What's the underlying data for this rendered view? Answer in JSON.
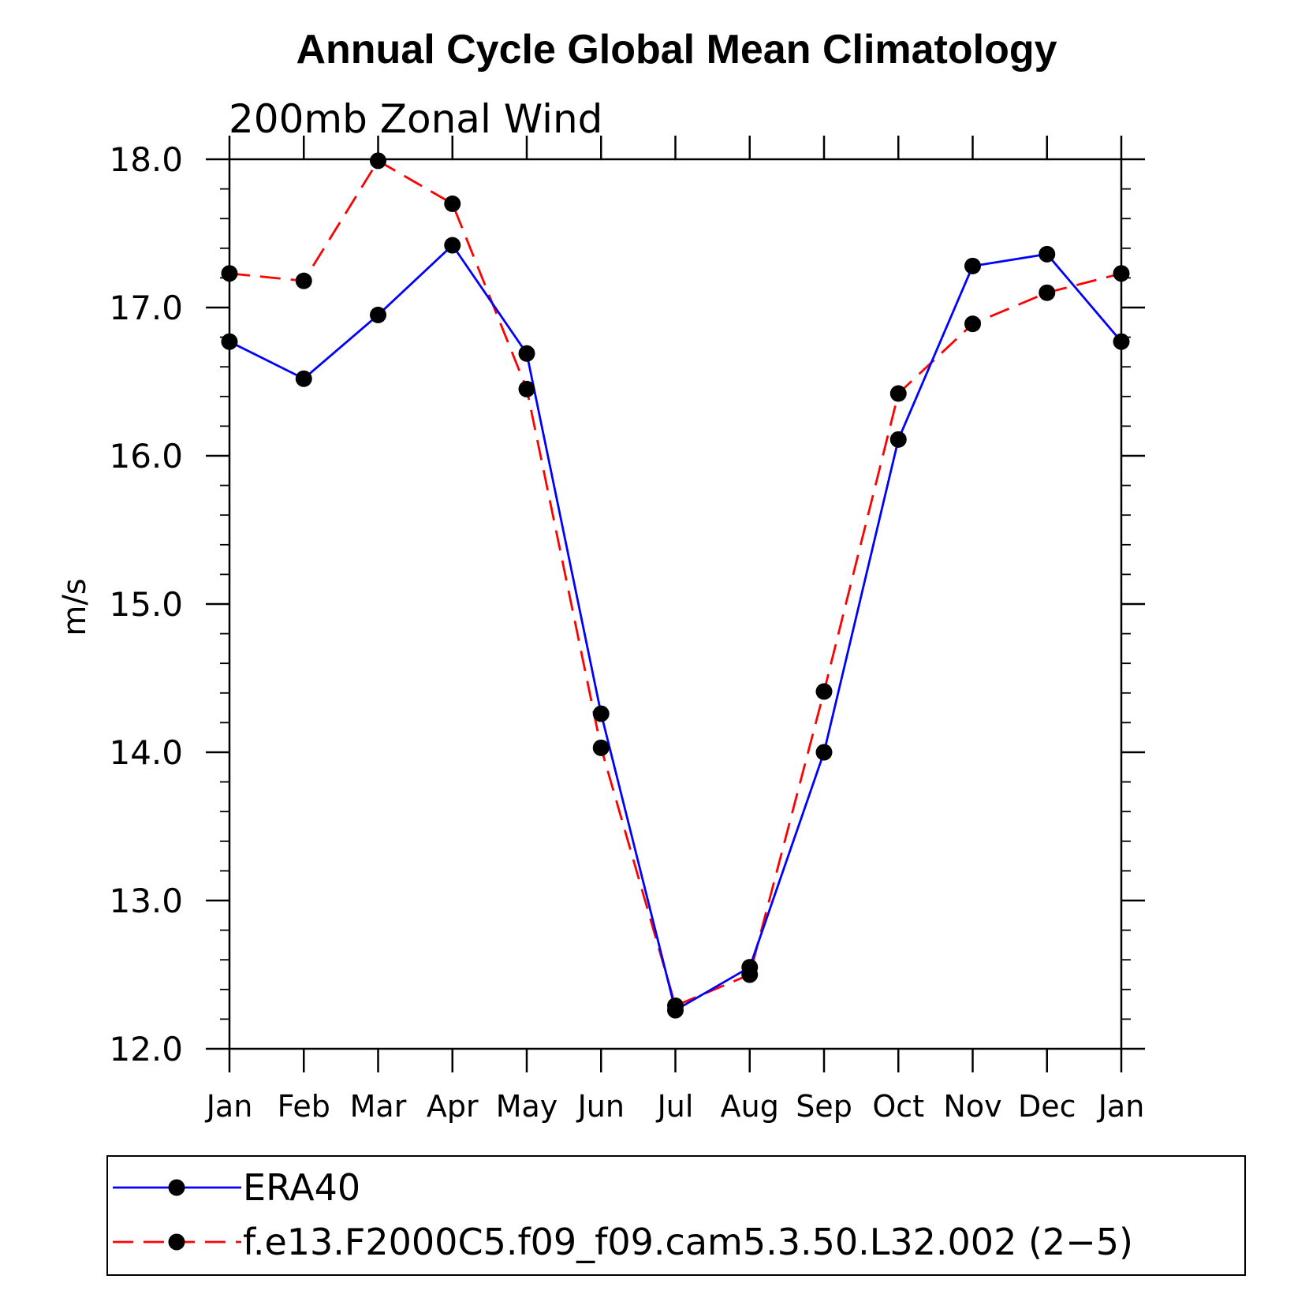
{
  "chart_data": {
    "type": "line",
    "title": "Annual Cycle Global Mean Climatology",
    "subtitle": "200mb Zonal Wind",
    "ylabel": "m/s",
    "xlabel": "",
    "ylim": [
      12.0,
      18.0
    ],
    "yticks": [
      "12.0",
      "13.0",
      "14.0",
      "15.0",
      "16.0",
      "17.0",
      "18.0"
    ],
    "categories": [
      "Jan",
      "Feb",
      "Mar",
      "Apr",
      "May",
      "Jun",
      "Jul",
      "Aug",
      "Sep",
      "Oct",
      "Nov",
      "Dec",
      "Jan"
    ],
    "series": [
      {
        "name": "ERA40",
        "color": "#0000ff",
        "dash": "solid",
        "values": [
          16.77,
          16.52,
          16.95,
          17.42,
          16.69,
          14.26,
          12.26,
          12.55,
          14.0,
          16.11,
          17.28,
          17.36,
          16.77
        ]
      },
      {
        "name": "f.e13.F2000C5.f09_f09.cam5.3.50.L32.002 (2-5)",
        "color": "#ff0000",
        "dash": "dashed",
        "values": [
          17.23,
          17.18,
          17.99,
          17.7,
          16.45,
          14.03,
          12.29,
          12.5,
          14.41,
          16.42,
          16.89,
          17.1,
          17.23
        ]
      }
    ],
    "legend": {
      "position": "bottom",
      "entries": [
        "ERA40",
        "f.e13.F2000C5.f09_f09.cam5.3.50.L32.002 (2−5)"
      ]
    },
    "grid": false
  }
}
